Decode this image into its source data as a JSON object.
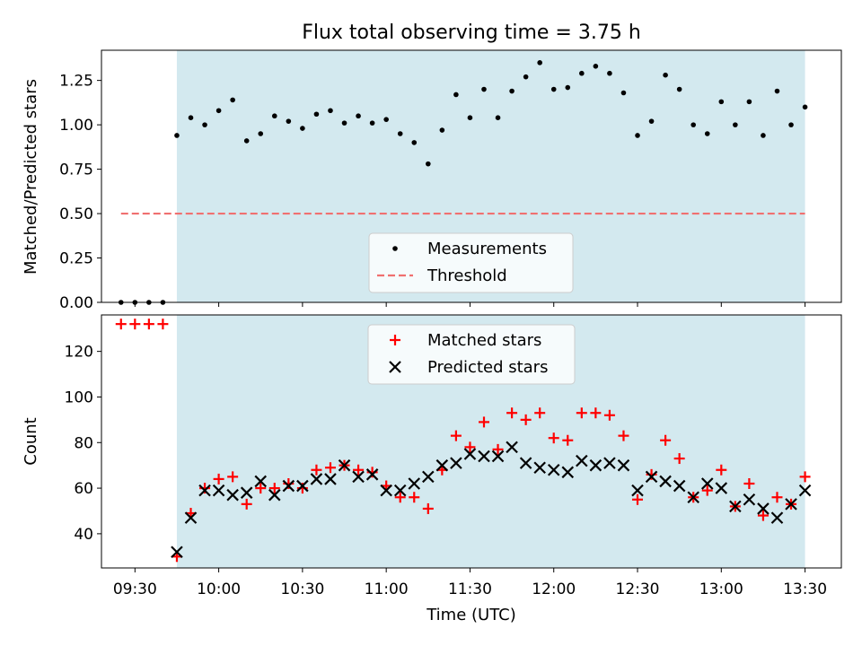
{
  "figure": {
    "title": "Flux total observing time = 3.75 h",
    "xlabel": "Time (UTC)",
    "x_ticks": [
      "09:30",
      "10:00",
      "10:30",
      "11:00",
      "11:30",
      "12:00",
      "12:30",
      "13:00",
      "13:30"
    ],
    "colors": {
      "observing_band": "#d3e9ef",
      "measurement": "#000000",
      "threshold": "#f07070",
      "matched": "#ff0000",
      "predicted": "#000000"
    }
  },
  "chart_data": [
    {
      "type": "scatter",
      "title": "Flux total observing time = 3.75 h",
      "xlabel": "",
      "ylabel": "Matched/Predicted stars",
      "x_unit": "time of day (UTC)",
      "xlim": [
        "09:18",
        "13:43"
      ],
      "ylim": [
        0,
        1.42
      ],
      "y_ticks": [
        "0.00",
        "0.25",
        "0.50",
        "0.75",
        "1.00",
        "1.25"
      ],
      "shaded_interval": [
        "09:45",
        "13:30"
      ],
      "legend": {
        "location": "lower center",
        "entries": [
          "Measurements",
          "Threshold"
        ]
      },
      "threshold": {
        "name": "Threshold",
        "value": 0.5,
        "x_range": [
          "09:25",
          "13:30"
        ],
        "style": "dashed"
      },
      "series": [
        {
          "name": "Measurements",
          "marker": "dot",
          "points": [
            [
              "09:25",
              0.0
            ],
            [
              "09:30",
              0.0
            ],
            [
              "09:35",
              0.0
            ],
            [
              "09:40",
              0.0
            ],
            [
              "09:45",
              0.94
            ],
            [
              "09:50",
              1.04
            ],
            [
              "09:55",
              1.0
            ],
            [
              "10:00",
              1.08
            ],
            [
              "10:05",
              1.14
            ],
            [
              "10:10",
              0.91
            ],
            [
              "10:15",
              0.95
            ],
            [
              "10:20",
              1.05
            ],
            [
              "10:25",
              1.02
            ],
            [
              "10:30",
              0.98
            ],
            [
              "10:35",
              1.06
            ],
            [
              "10:40",
              1.08
            ],
            [
              "10:45",
              1.01
            ],
            [
              "10:50",
              1.05
            ],
            [
              "10:55",
              1.01
            ],
            [
              "11:00",
              1.03
            ],
            [
              "11:05",
              0.95
            ],
            [
              "11:10",
              0.9
            ],
            [
              "11:15",
              0.78
            ],
            [
              "11:20",
              0.97
            ],
            [
              "11:25",
              1.17
            ],
            [
              "11:30",
              1.04
            ],
            [
              "11:35",
              1.2
            ],
            [
              "11:40",
              1.04
            ],
            [
              "11:45",
              1.19
            ],
            [
              "11:50",
              1.27
            ],
            [
              "11:55",
              1.35
            ],
            [
              "12:00",
              1.2
            ],
            [
              "12:05",
              1.21
            ],
            [
              "12:10",
              1.29
            ],
            [
              "12:15",
              1.33
            ],
            [
              "12:20",
              1.29
            ],
            [
              "12:25",
              1.18
            ],
            [
              "12:30",
              0.94
            ],
            [
              "12:35",
              1.02
            ],
            [
              "12:40",
              1.28
            ],
            [
              "12:45",
              1.2
            ],
            [
              "12:50",
              1.0
            ],
            [
              "12:55",
              0.95
            ],
            [
              "13:00",
              1.13
            ],
            [
              "13:05",
              1.0
            ],
            [
              "13:10",
              1.13
            ],
            [
              "13:15",
              0.94
            ],
            [
              "13:20",
              1.19
            ],
            [
              "13:25",
              1.0
            ],
            [
              "13:30",
              1.1
            ]
          ]
        }
      ]
    },
    {
      "type": "scatter",
      "title": "",
      "xlabel": "Time (UTC)",
      "ylabel": "Count",
      "x_unit": "time of day (UTC)",
      "xlim": [
        "09:18",
        "13:43"
      ],
      "ylim": [
        25,
        136
      ],
      "y_ticks": [
        "40",
        "60",
        "80",
        "100",
        "120"
      ],
      "shaded_interval": [
        "09:45",
        "13:30"
      ],
      "legend": {
        "location": "upper center",
        "entries": [
          "Matched stars",
          "Predicted stars"
        ]
      },
      "series": [
        {
          "name": "Matched stars",
          "marker": "plus",
          "points": [
            [
              "09:25",
              132
            ],
            [
              "09:30",
              132
            ],
            [
              "09:35",
              132
            ],
            [
              "09:40",
              132
            ],
            [
              "09:45",
              30
            ],
            [
              "09:50",
              49
            ],
            [
              "09:55",
              60
            ],
            [
              "10:00",
              64
            ],
            [
              "10:05",
              65
            ],
            [
              "10:10",
              53
            ],
            [
              "10:15",
              60
            ],
            [
              "10:20",
              60
            ],
            [
              "10:25",
              62
            ],
            [
              "10:30",
              60
            ],
            [
              "10:35",
              68
            ],
            [
              "10:40",
              69
            ],
            [
              "10:45",
              70
            ],
            [
              "10:50",
              68
            ],
            [
              "10:55",
              67
            ],
            [
              "11:00",
              61
            ],
            [
              "11:05",
              56
            ],
            [
              "11:10",
              56
            ],
            [
              "11:15",
              51
            ],
            [
              "11:20",
              68
            ],
            [
              "11:25",
              83
            ],
            [
              "11:30",
              78
            ],
            [
              "11:35",
              89
            ],
            [
              "11:40",
              77
            ],
            [
              "11:45",
              93
            ],
            [
              "11:50",
              90
            ],
            [
              "11:55",
              93
            ],
            [
              "12:00",
              82
            ],
            [
              "12:05",
              81
            ],
            [
              "12:10",
              93
            ],
            [
              "12:15",
              93
            ],
            [
              "12:20",
              92
            ],
            [
              "12:25",
              83
            ],
            [
              "12:30",
              55
            ],
            [
              "12:35",
              66
            ],
            [
              "12:40",
              81
            ],
            [
              "12:45",
              73
            ],
            [
              "12:50",
              56
            ],
            [
              "12:55",
              59
            ],
            [
              "13:00",
              68
            ],
            [
              "13:05",
              52
            ],
            [
              "13:10",
              62
            ],
            [
              "13:15",
              48
            ],
            [
              "13:20",
              56
            ],
            [
              "13:25",
              53
            ],
            [
              "13:30",
              65
            ]
          ]
        },
        {
          "name": "Predicted stars",
          "marker": "x",
          "points": [
            [
              "09:45",
              32
            ],
            [
              "09:50",
              47
            ],
            [
              "09:55",
              59
            ],
            [
              "10:00",
              59
            ],
            [
              "10:05",
              57
            ],
            [
              "10:10",
              58
            ],
            [
              "10:15",
              63
            ],
            [
              "10:20",
              57
            ],
            [
              "10:25",
              61
            ],
            [
              "10:30",
              61
            ],
            [
              "10:35",
              64
            ],
            [
              "10:40",
              64
            ],
            [
              "10:45",
              70
            ],
            [
              "10:50",
              65
            ],
            [
              "10:55",
              66
            ],
            [
              "11:00",
              59
            ],
            [
              "11:05",
              59
            ],
            [
              "11:10",
              62
            ],
            [
              "11:15",
              65
            ],
            [
              "11:20",
              70
            ],
            [
              "11:25",
              71
            ],
            [
              "11:30",
              75
            ],
            [
              "11:35",
              74
            ],
            [
              "11:40",
              74
            ],
            [
              "11:45",
              78
            ],
            [
              "11:50",
              71
            ],
            [
              "11:55",
              69
            ],
            [
              "12:00",
              68
            ],
            [
              "12:05",
              67
            ],
            [
              "12:10",
              72
            ],
            [
              "12:15",
              70
            ],
            [
              "12:20",
              71
            ],
            [
              "12:25",
              70
            ],
            [
              "12:30",
              59
            ],
            [
              "12:35",
              65
            ],
            [
              "12:40",
              63
            ],
            [
              "12:45",
              61
            ],
            [
              "12:50",
              56
            ],
            [
              "12:55",
              62
            ],
            [
              "13:00",
              60
            ],
            [
              "13:05",
              52
            ],
            [
              "13:10",
              55
            ],
            [
              "13:15",
              51
            ],
            [
              "13:20",
              47
            ],
            [
              "13:25",
              53
            ],
            [
              "13:30",
              59
            ]
          ]
        }
      ]
    }
  ]
}
